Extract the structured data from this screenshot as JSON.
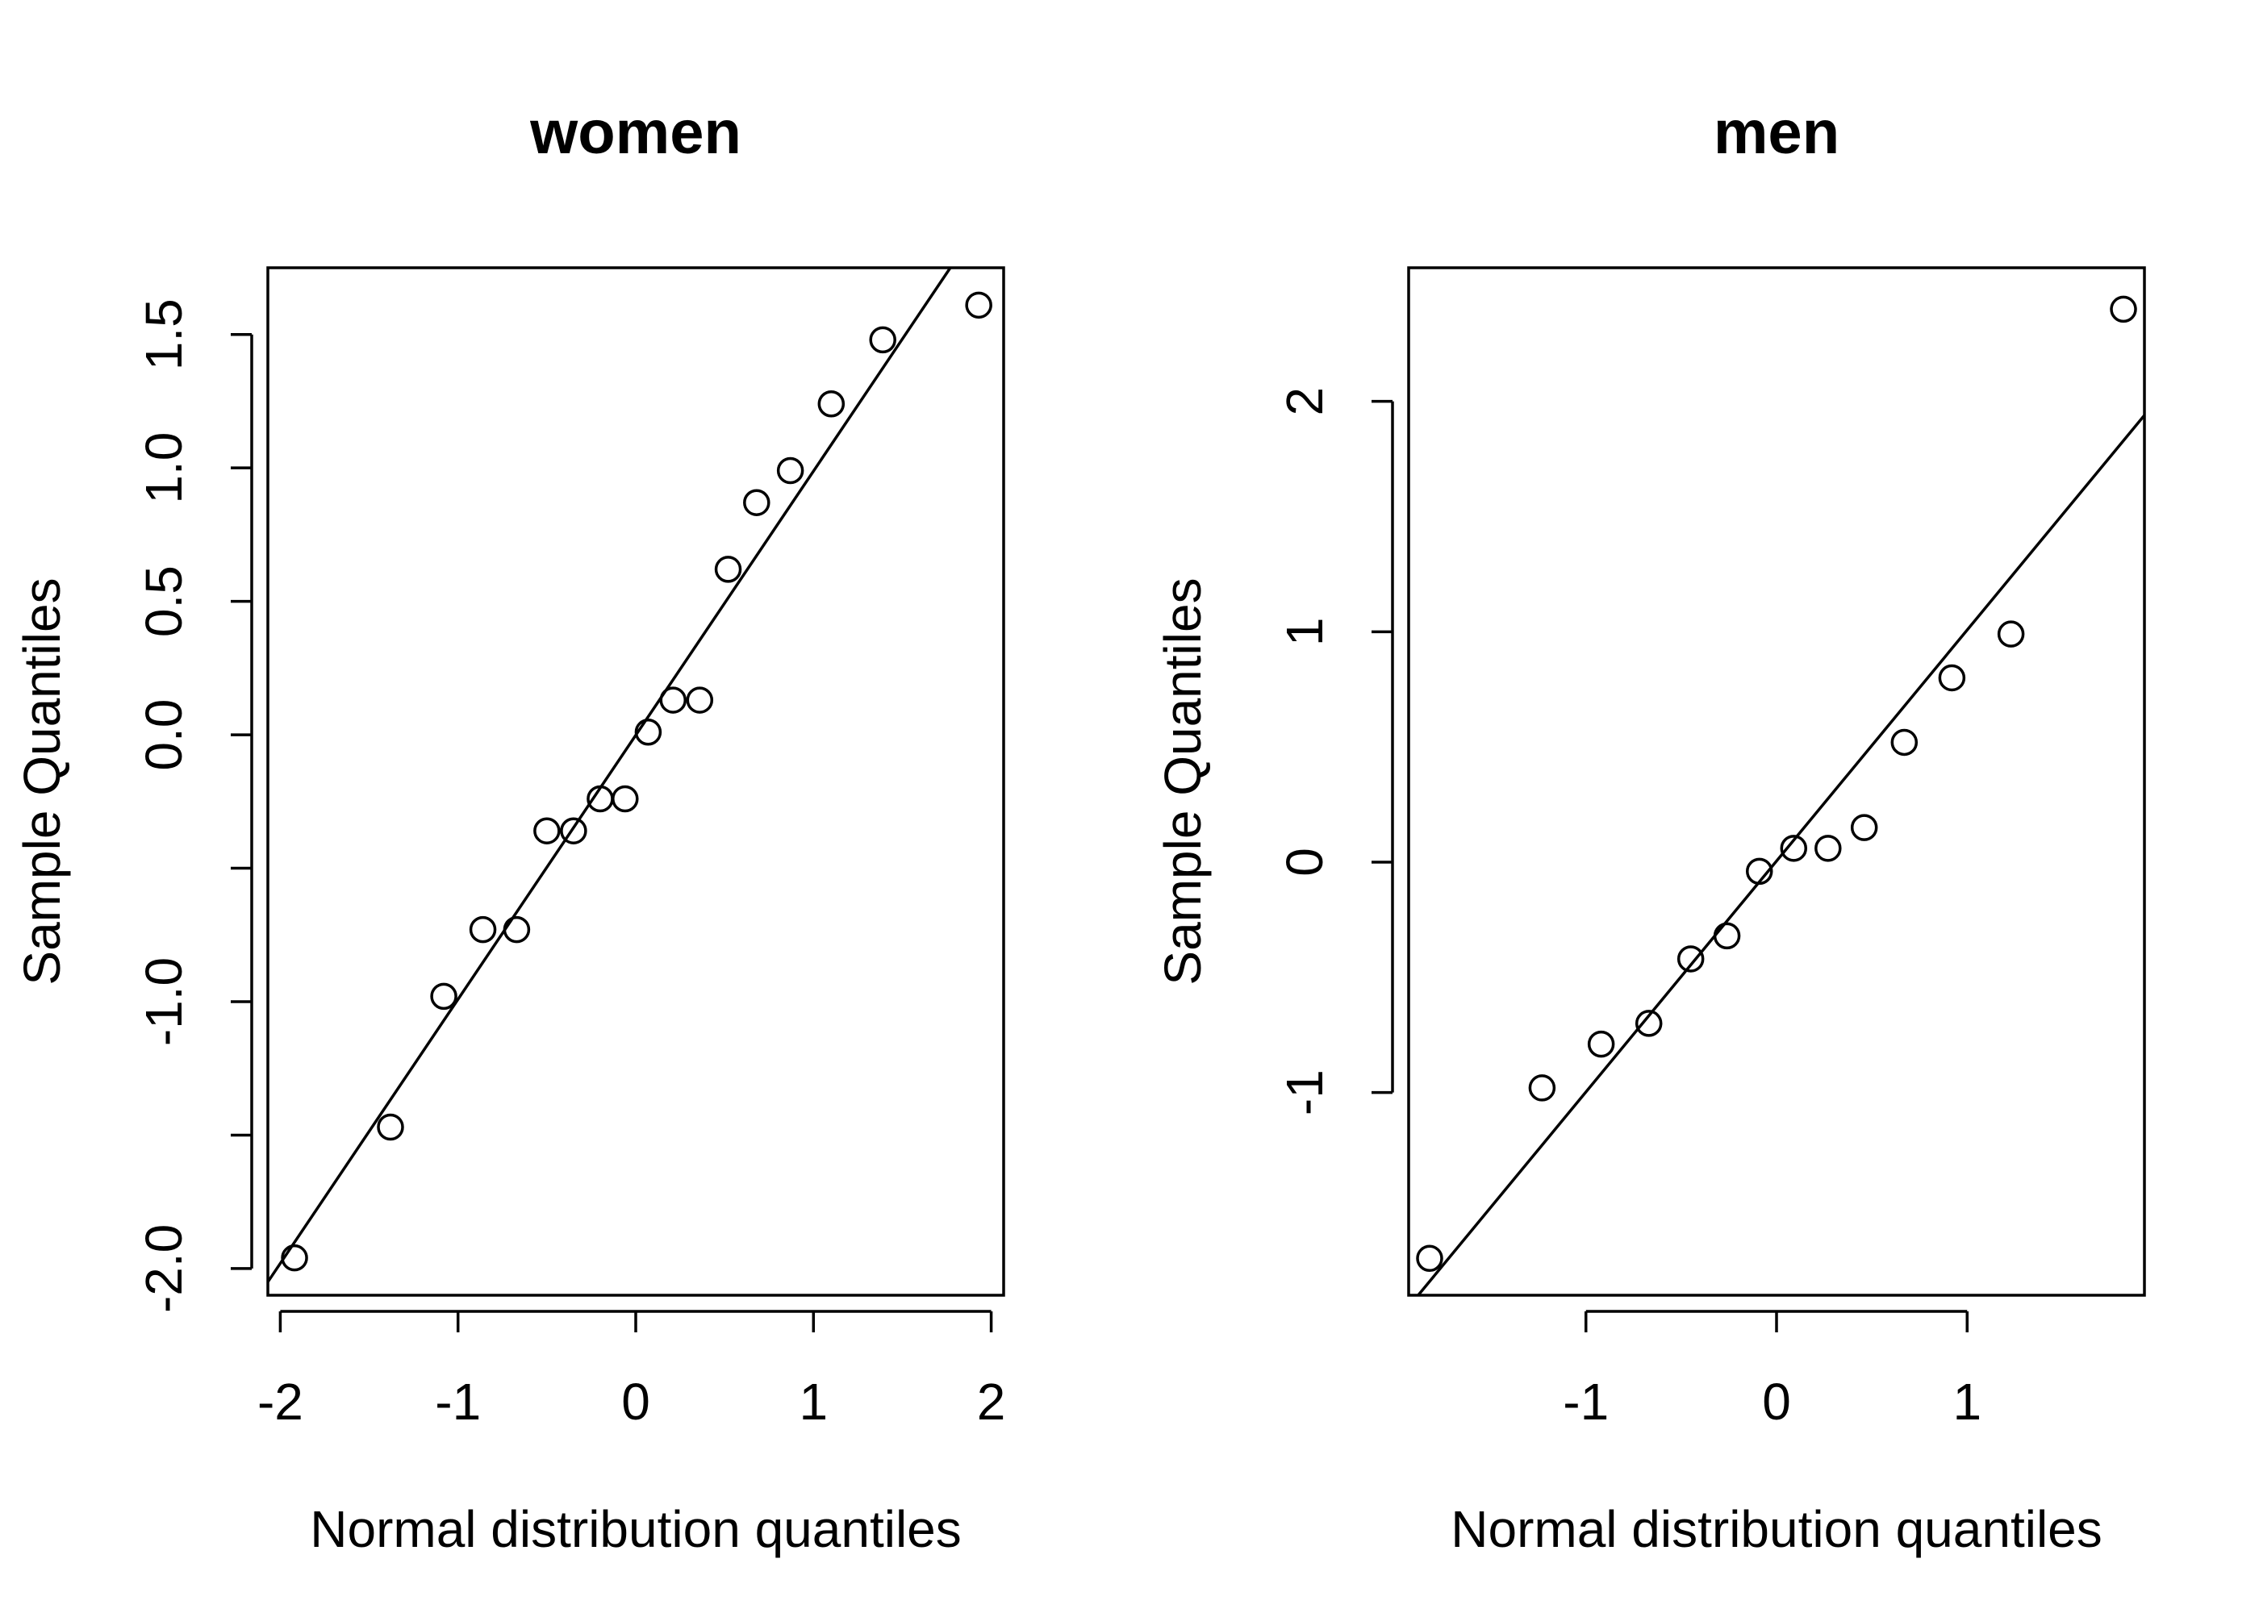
{
  "chart_data": [
    {
      "type": "scatter",
      "title": "women",
      "xlabel": "Normal distribution quantiles",
      "ylabel": "Sample Quantiles",
      "xlim": [
        -2.07,
        2.07
      ],
      "ylim": [
        -2.1,
        1.75
      ],
      "x_ticks": [
        -2,
        -1,
        0,
        1,
        2
      ],
      "x_tick_labels": [
        "-2",
        "-1",
        "0",
        "1",
        "2"
      ],
      "y_ticks": [
        -2.0,
        -1.5,
        -1.0,
        -0.5,
        0.0,
        0.5,
        1.0,
        1.5
      ],
      "y_tick_labels": [
        "-2.0",
        "",
        "-1.0",
        "",
        "0.0",
        "0.5",
        "1.0",
        "1.5"
      ],
      "grid": false,
      "reference_line": {
        "from": [
          -2.07,
          -2.05
        ],
        "to": [
          1.77,
          1.75
        ]
      },
      "points": [
        {
          "x": -1.92,
          "y": -1.96
        },
        {
          "x": -1.38,
          "y": -1.47
        },
        {
          "x": -1.08,
          "y": -0.98
        },
        {
          "x": -0.86,
          "y": -0.73
        },
        {
          "x": -0.67,
          "y": -0.73
        },
        {
          "x": -0.5,
          "y": -0.36
        },
        {
          "x": -0.35,
          "y": -0.36
        },
        {
          "x": -0.2,
          "y": -0.24
        },
        {
          "x": -0.06,
          "y": -0.24
        },
        {
          "x": 0.07,
          "y": 0.01
        },
        {
          "x": 0.21,
          "y": 0.13
        },
        {
          "x": 0.36,
          "y": 0.13
        },
        {
          "x": 0.52,
          "y": 0.62
        },
        {
          "x": 0.68,
          "y": 0.87
        },
        {
          "x": 0.87,
          "y": 0.99
        },
        {
          "x": 1.1,
          "y": 1.24
        },
        {
          "x": 1.39,
          "y": 1.48
        },
        {
          "x": 1.93,
          "y": 1.61
        }
      ]
    },
    {
      "type": "scatter",
      "title": "men",
      "xlabel": "Normal distribution quantiles",
      "ylabel": "Sample Quantiles",
      "xlim": [
        -1.93,
        1.93
      ],
      "ylim": [
        -1.88,
        2.58
      ],
      "x_ticks": [
        -1,
        0,
        1
      ],
      "x_tick_labels": [
        "-1",
        "0",
        "1"
      ],
      "y_ticks": [
        -1,
        0,
        1,
        2
      ],
      "y_tick_labels": [
        "-1",
        "0",
        "1",
        "2"
      ],
      "grid": false,
      "reference_line": {
        "from": [
          -1.88,
          -1.88
        ],
        "to": [
          1.93,
          1.94
        ]
      },
      "points": [
        {
          "x": -1.82,
          "y": -1.72
        },
        {
          "x": -1.23,
          "y": -0.98
        },
        {
          "x": -0.92,
          "y": -0.79
        },
        {
          "x": -0.67,
          "y": -0.7
        },
        {
          "x": -0.45,
          "y": -0.42
        },
        {
          "x": -0.26,
          "y": -0.32
        },
        {
          "x": -0.09,
          "y": -0.04
        },
        {
          "x": 0.09,
          "y": 0.06
        },
        {
          "x": 0.27,
          "y": 0.06
        },
        {
          "x": 0.46,
          "y": 0.15
        },
        {
          "x": 0.67,
          "y": 0.52
        },
        {
          "x": 0.92,
          "y": 0.8
        },
        {
          "x": 1.23,
          "y": 0.99
        },
        {
          "x": 1.82,
          "y": 2.4
        }
      ]
    }
  ]
}
